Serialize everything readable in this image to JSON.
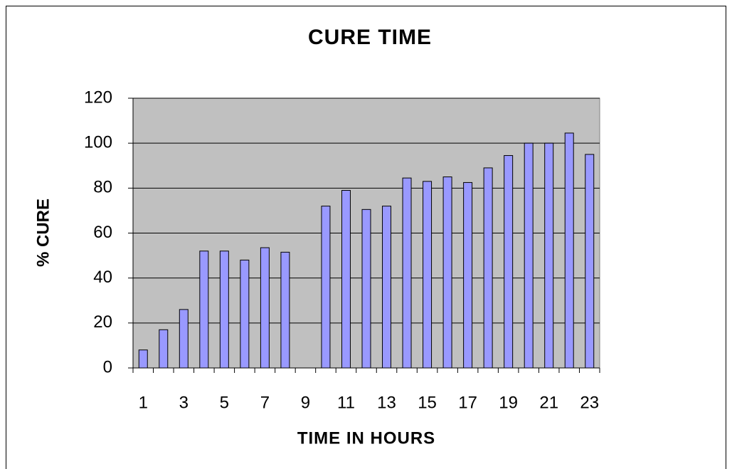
{
  "chart_data": {
    "type": "bar",
    "title": "CURE TIME",
    "x_label": "TIME IN HOURS",
    "y_label": "% CURE",
    "categories": [
      1,
      null,
      3,
      null,
      5,
      null,
      7,
      null,
      9,
      null,
      11,
      null,
      13,
      null,
      15,
      null,
      17,
      null,
      19,
      null,
      21,
      null,
      23
    ],
    "values": [
      8,
      17,
      26,
      52,
      52,
      48,
      53.5,
      51.5,
      null,
      72,
      79,
      70.5,
      72,
      84.5,
      83,
      85,
      82.5,
      89,
      94.5,
      100,
      100,
      104.5,
      95
    ],
    "color": "#9999ff",
    "ylim": [
      0,
      120
    ],
    "yticks": [
      0,
      20,
      40,
      60,
      80,
      100,
      120
    ],
    "grid": true
  }
}
